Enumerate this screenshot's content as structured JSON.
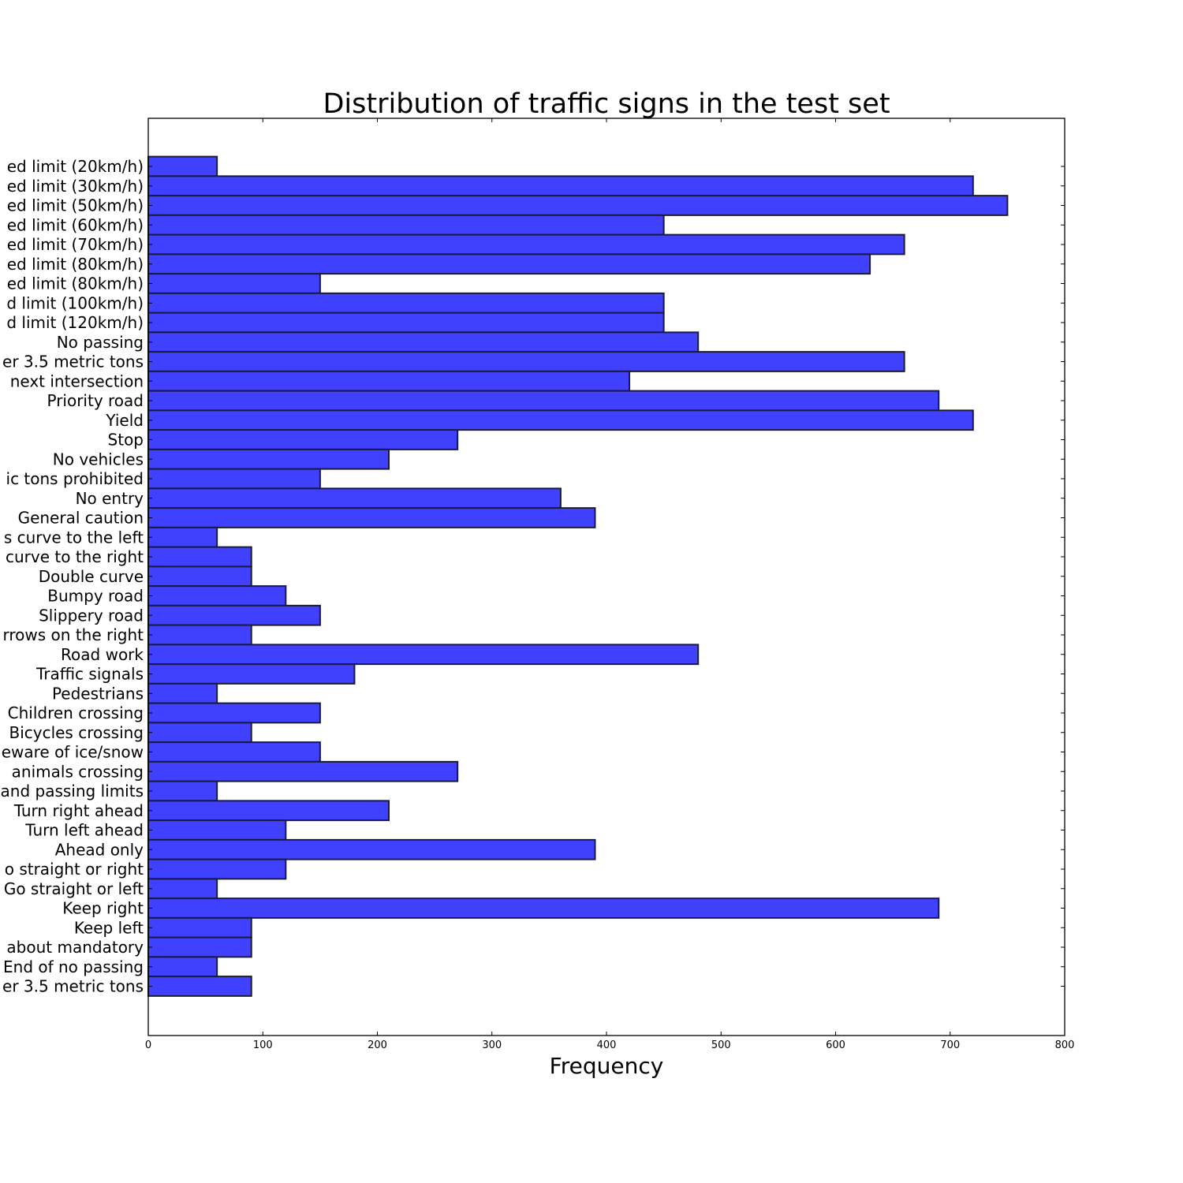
{
  "chart_data": {
    "type": "bar",
    "orientation": "horizontal",
    "title": "Distribution of traffic signs in the test set",
    "xlabel": "Frequency",
    "ylabel": "",
    "xlim": [
      0,
      800
    ],
    "xticks": [
      "0",
      "100",
      "200",
      "300",
      "400",
      "500",
      "600",
      "700",
      "800"
    ],
    "grid": false,
    "bar_color": "#4040ff",
    "categories": [
      "ed limit (20km/h)",
      "ed limit (30km/h)",
      "ed limit (50km/h)",
      "ed limit (60km/h)",
      "ed limit (70km/h)",
      "ed limit (80km/h)",
      "ed limit (80km/h)",
      "d limit (100km/h)",
      "d limit (120km/h)",
      "No passing",
      "er 3.5 metric tons",
      " next intersection",
      "Priority road",
      "Yield",
      "Stop",
      "No vehicles",
      "ic tons prohibited",
      "No entry",
      "General caution",
      "s curve to the left",
      "curve to the right",
      "Double curve",
      "Bumpy road",
      "Slippery road",
      "rrows on the right",
      "Road work",
      "Traffic signals",
      "Pedestrians",
      "Children crossing",
      "Bicycles crossing",
      "eware of ice/snow",
      " animals crossing",
      "and passing limits",
      "Turn right ahead",
      "Turn left ahead",
      "Ahead only",
      "o straight or right",
      "Go straight or left",
      "Keep right",
      "Keep left",
      "about mandatory",
      "End of no passing",
      "er 3.5 metric tons"
    ],
    "values": [
      60,
      720,
      750,
      450,
      660,
      630,
      150,
      450,
      450,
      480,
      660,
      420,
      690,
      720,
      270,
      210,
      150,
      360,
      390,
      60,
      90,
      90,
      120,
      150,
      90,
      480,
      180,
      60,
      150,
      90,
      150,
      270,
      60,
      210,
      120,
      390,
      120,
      60,
      690,
      90,
      90,
      60,
      90
    ]
  }
}
